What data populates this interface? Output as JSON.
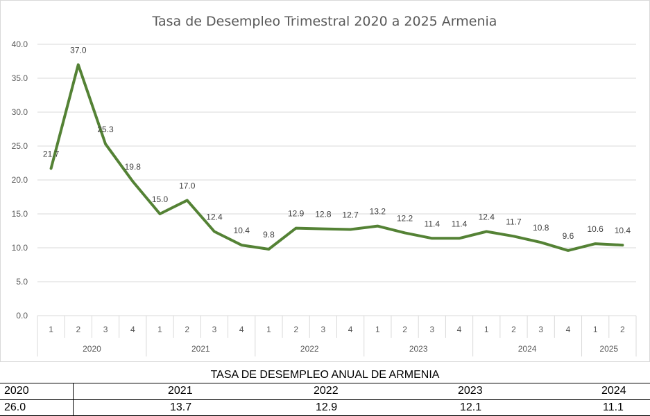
{
  "chart_data": {
    "type": "line",
    "title": "Tasa de Desempleo  Trimestral 2020 a 2025 Armenia",
    "xlabel": "",
    "ylabel": "",
    "ylim": [
      0,
      40
    ],
    "yticks": [
      "0.0",
      "5.0",
      "10.0",
      "15.0",
      "20.0",
      "25.0",
      "30.0",
      "35.0",
      "40.0"
    ],
    "grid": true,
    "legend": "none",
    "line_color": "#548235",
    "categories": [
      "1",
      "2",
      "3",
      "4",
      "1",
      "2",
      "3",
      "4",
      "1",
      "2",
      "3",
      "4",
      "1",
      "2",
      "3",
      "4",
      "1",
      "2",
      "3",
      "4",
      "1",
      "2"
    ],
    "groups": [
      {
        "label": "2020",
        "count": 4
      },
      {
        "label": "2021",
        "count": 4
      },
      {
        "label": "2022",
        "count": 4
      },
      {
        "label": "2023",
        "count": 4
      },
      {
        "label": "2024",
        "count": 4
      },
      {
        "label": "2025",
        "count": 2
      }
    ],
    "series": [
      {
        "values": [
          21.7,
          37.0,
          25.3,
          19.8,
          15.0,
          17.0,
          12.4,
          10.4,
          9.8,
          12.9,
          12.8,
          12.7,
          13.2,
          12.2,
          11.4,
          11.4,
          12.4,
          11.7,
          10.8,
          9.6,
          10.6,
          10.4
        ]
      }
    ],
    "data_labels": [
      "21.7",
      "37.0",
      "25.3",
      "19.8",
      "15.0",
      "17.0",
      "12.4",
      "10.4",
      "9.8",
      "12.9",
      "12.8",
      "12.7",
      "13.2",
      "12.2",
      "11.4",
      "11.4",
      "12.4",
      "11.7",
      "10.8",
      "9.6",
      "10.6",
      "10.4"
    ]
  },
  "annual_table": {
    "title": "TASA DE DESEMPLEO ANUAL DE ARMENIA",
    "years": [
      "2020",
      "2021",
      "2022",
      "2023",
      "2024"
    ],
    "values": [
      "26.0",
      "13.7",
      "12.9",
      "12.1",
      "11.1"
    ]
  }
}
